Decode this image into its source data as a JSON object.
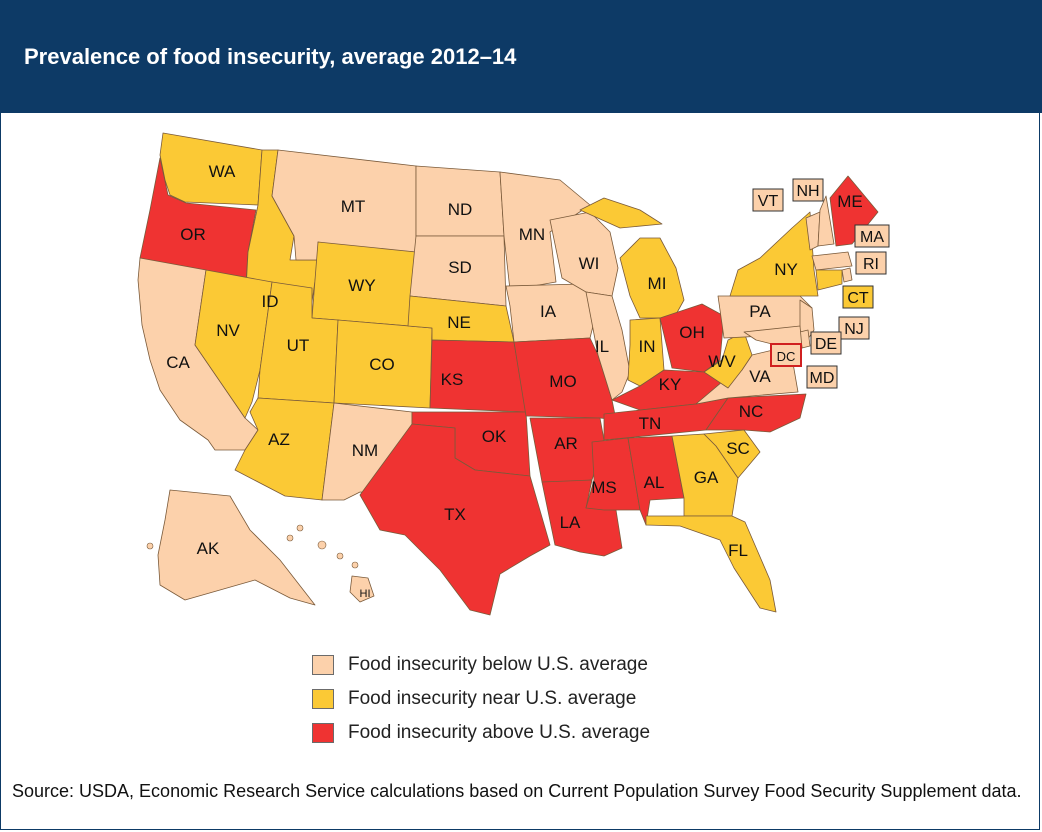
{
  "title": "Prevalence of food insecurity, average 2012–14",
  "colors": {
    "below": "#fcd1ab",
    "near": "#fbc935",
    "above": "#ef3332",
    "header": "#0d3a66"
  },
  "legend": [
    {
      "category": "below",
      "label": "Food insecurity below U.S. average"
    },
    {
      "category": "near",
      "label": "Food insecurity near U.S. average"
    },
    {
      "category": "above",
      "label": "Food insecurity above U.S. average"
    }
  ],
  "states": [
    {
      "abbr": "WA",
      "category": "near"
    },
    {
      "abbr": "OR",
      "category": "above"
    },
    {
      "abbr": "CA",
      "category": "below"
    },
    {
      "abbr": "ID",
      "category": "near"
    },
    {
      "abbr": "NV",
      "category": "near"
    },
    {
      "abbr": "MT",
      "category": "below"
    },
    {
      "abbr": "WY",
      "category": "near"
    },
    {
      "abbr": "UT",
      "category": "near"
    },
    {
      "abbr": "AZ",
      "category": "near"
    },
    {
      "abbr": "CO",
      "category": "near"
    },
    {
      "abbr": "NM",
      "category": "below"
    },
    {
      "abbr": "ND",
      "category": "below"
    },
    {
      "abbr": "SD",
      "category": "below"
    },
    {
      "abbr": "NE",
      "category": "near"
    },
    {
      "abbr": "KS",
      "category": "above"
    },
    {
      "abbr": "OK",
      "category": "above"
    },
    {
      "abbr": "TX",
      "category": "above"
    },
    {
      "abbr": "MN",
      "category": "below"
    },
    {
      "abbr": "IA",
      "category": "below"
    },
    {
      "abbr": "MO",
      "category": "above"
    },
    {
      "abbr": "AR",
      "category": "above"
    },
    {
      "abbr": "LA",
      "category": "above"
    },
    {
      "abbr": "WI",
      "category": "below"
    },
    {
      "abbr": "IL",
      "category": "below"
    },
    {
      "abbr": "MI",
      "category": "near"
    },
    {
      "abbr": "IN",
      "category": "near"
    },
    {
      "abbr": "OH",
      "category": "above"
    },
    {
      "abbr": "KY",
      "category": "above"
    },
    {
      "abbr": "TN",
      "category": "above"
    },
    {
      "abbr": "MS",
      "category": "above"
    },
    {
      "abbr": "AL",
      "category": "above"
    },
    {
      "abbr": "GA",
      "category": "near"
    },
    {
      "abbr": "FL",
      "category": "near"
    },
    {
      "abbr": "SC",
      "category": "near"
    },
    {
      "abbr": "NC",
      "category": "above"
    },
    {
      "abbr": "VA",
      "category": "below"
    },
    {
      "abbr": "WV",
      "category": "near"
    },
    {
      "abbr": "PA",
      "category": "below"
    },
    {
      "abbr": "NY",
      "category": "near"
    },
    {
      "abbr": "VT",
      "category": "below"
    },
    {
      "abbr": "NH",
      "category": "below"
    },
    {
      "abbr": "ME",
      "category": "above"
    },
    {
      "abbr": "MA",
      "category": "below"
    },
    {
      "abbr": "RI",
      "category": "below"
    },
    {
      "abbr": "CT",
      "category": "near"
    },
    {
      "abbr": "NJ",
      "category": "below"
    },
    {
      "abbr": "DE",
      "category": "below"
    },
    {
      "abbr": "MD",
      "category": "below"
    },
    {
      "abbr": "DC",
      "category": "below"
    },
    {
      "abbr": "AK",
      "category": "below"
    },
    {
      "abbr": "HI",
      "category": "below"
    }
  ],
  "source": "Source: USDA, Economic Research Service calculations based on Current Population Survey Food Security Supplement data."
}
